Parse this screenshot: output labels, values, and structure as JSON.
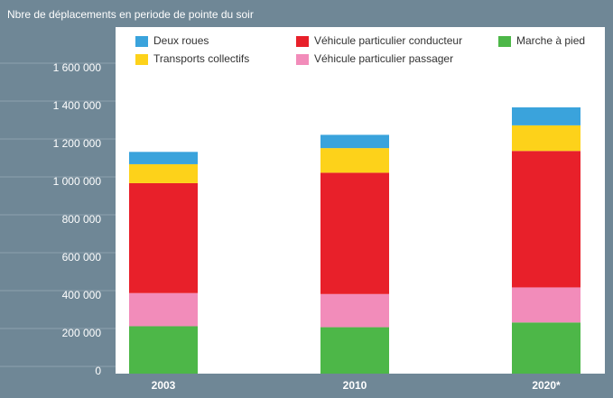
{
  "chart_data": {
    "type": "stacked_bar",
    "title": "Nbre de déplacements en periode de pointe du soir",
    "categories": [
      "2003",
      "2010",
      "2020*"
    ],
    "series": [
      {
        "name": "Deux roues",
        "color": "#3aa3dc",
        "values": [
          65000,
          70000,
          95000
        ]
      },
      {
        "name": "Véhicule particulier conducteur",
        "color": "#e8202a",
        "values": [
          580000,
          640000,
          720000
        ]
      },
      {
        "name": "Marche à pied",
        "color": "#4db748",
        "values": [
          250000,
          245000,
          270000
        ]
      },
      {
        "name": "Transports collectifs",
        "color": "#fdd21a",
        "values": [
          100000,
          130000,
          135000
        ]
      },
      {
        "name": "Véhicule particulier passager",
        "color": "#f28cba",
        "values": [
          175000,
          175000,
          185000
        ]
      }
    ],
    "ylim": [
      0,
      1800000
    ],
    "yticks": [
      0,
      {
        "value": 200000,
        "label": "200 000"
      },
      {
        "value": 400000,
        "label": "400 000"
      },
      {
        "value": 600000,
        "label": "600 000"
      },
      {
        "value": 800000,
        "label": "800 000"
      },
      {
        "value": 1000000,
        "label": "1 000 000"
      },
      {
        "value": 1200000,
        "label": "1 200 000"
      },
      {
        "value": 1400000,
        "label": "1 400 000"
      },
      {
        "value": 1600000,
        "label": "1 600 000"
      }
    ]
  }
}
